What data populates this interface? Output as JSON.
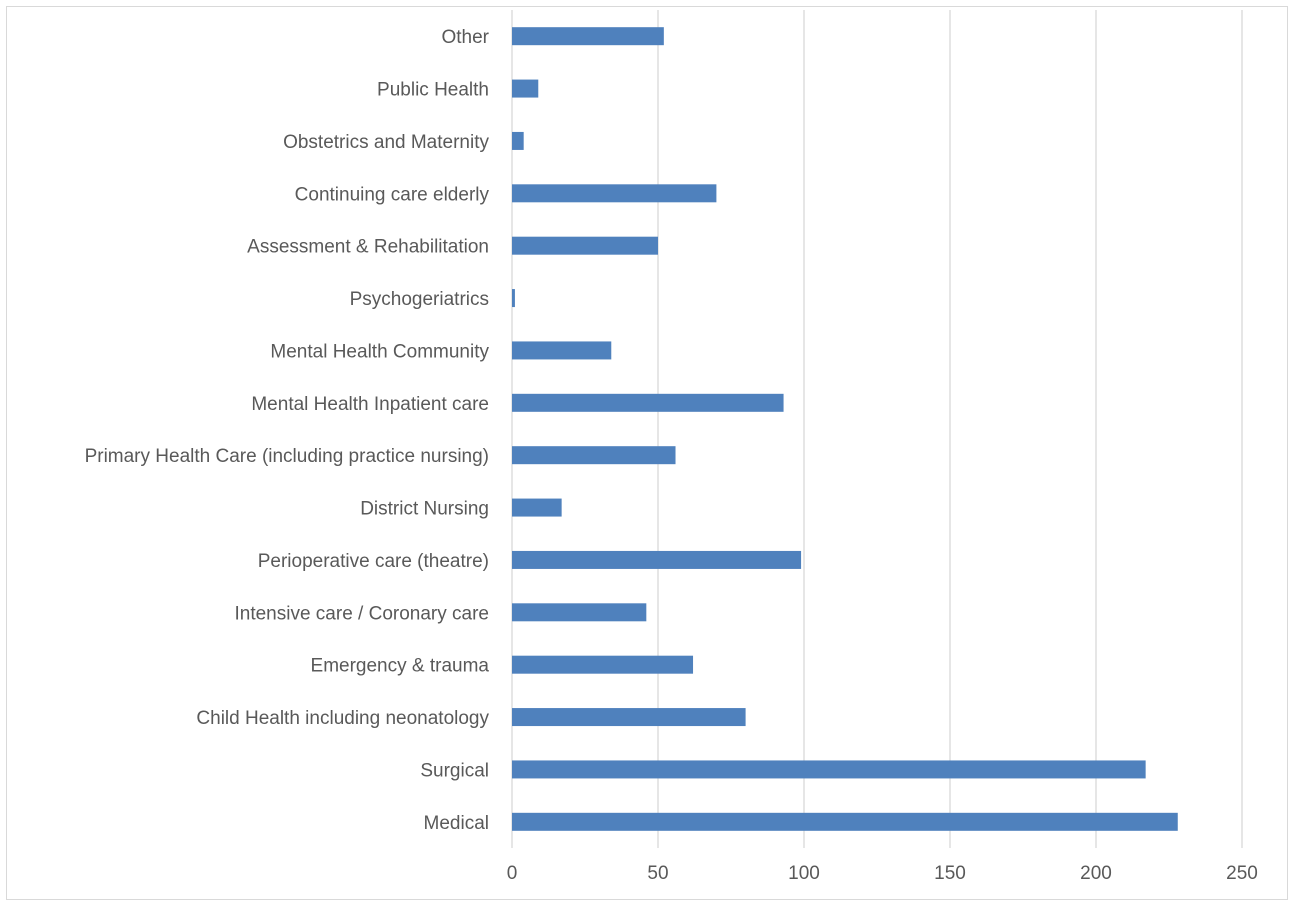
{
  "chart_data": {
    "type": "bar",
    "orientation": "horizontal",
    "title": "",
    "xlabel": "",
    "ylabel": "",
    "categories": [
      "Medical",
      "Surgical",
      "Child Health including neonatology",
      "Emergency & trauma",
      "Intensive care / Coronary care",
      "Perioperative care (theatre)",
      "District Nursing",
      "Primary Health Care (including practice nursing)",
      "Mental Health Inpatient care",
      "Mental Health Community",
      "Psychogeriatrics",
      "Assessment & Rehabilitation",
      "Continuing care elderly",
      "Obstetrics and Maternity",
      "Public Health",
      "Other"
    ],
    "values": [
      228,
      217,
      80,
      62,
      46,
      99,
      17,
      56,
      93,
      34,
      1,
      50,
      70,
      4,
      9,
      52
    ],
    "xlim": [
      0,
      250
    ],
    "x_ticks": [
      "0",
      "50",
      "100",
      "150",
      "200",
      "250"
    ],
    "grid": "vertical gridlines",
    "legend": "none",
    "bar_color": "#4f81bd",
    "grid_color": "#d9d9d9",
    "text_color": "#595959"
  }
}
